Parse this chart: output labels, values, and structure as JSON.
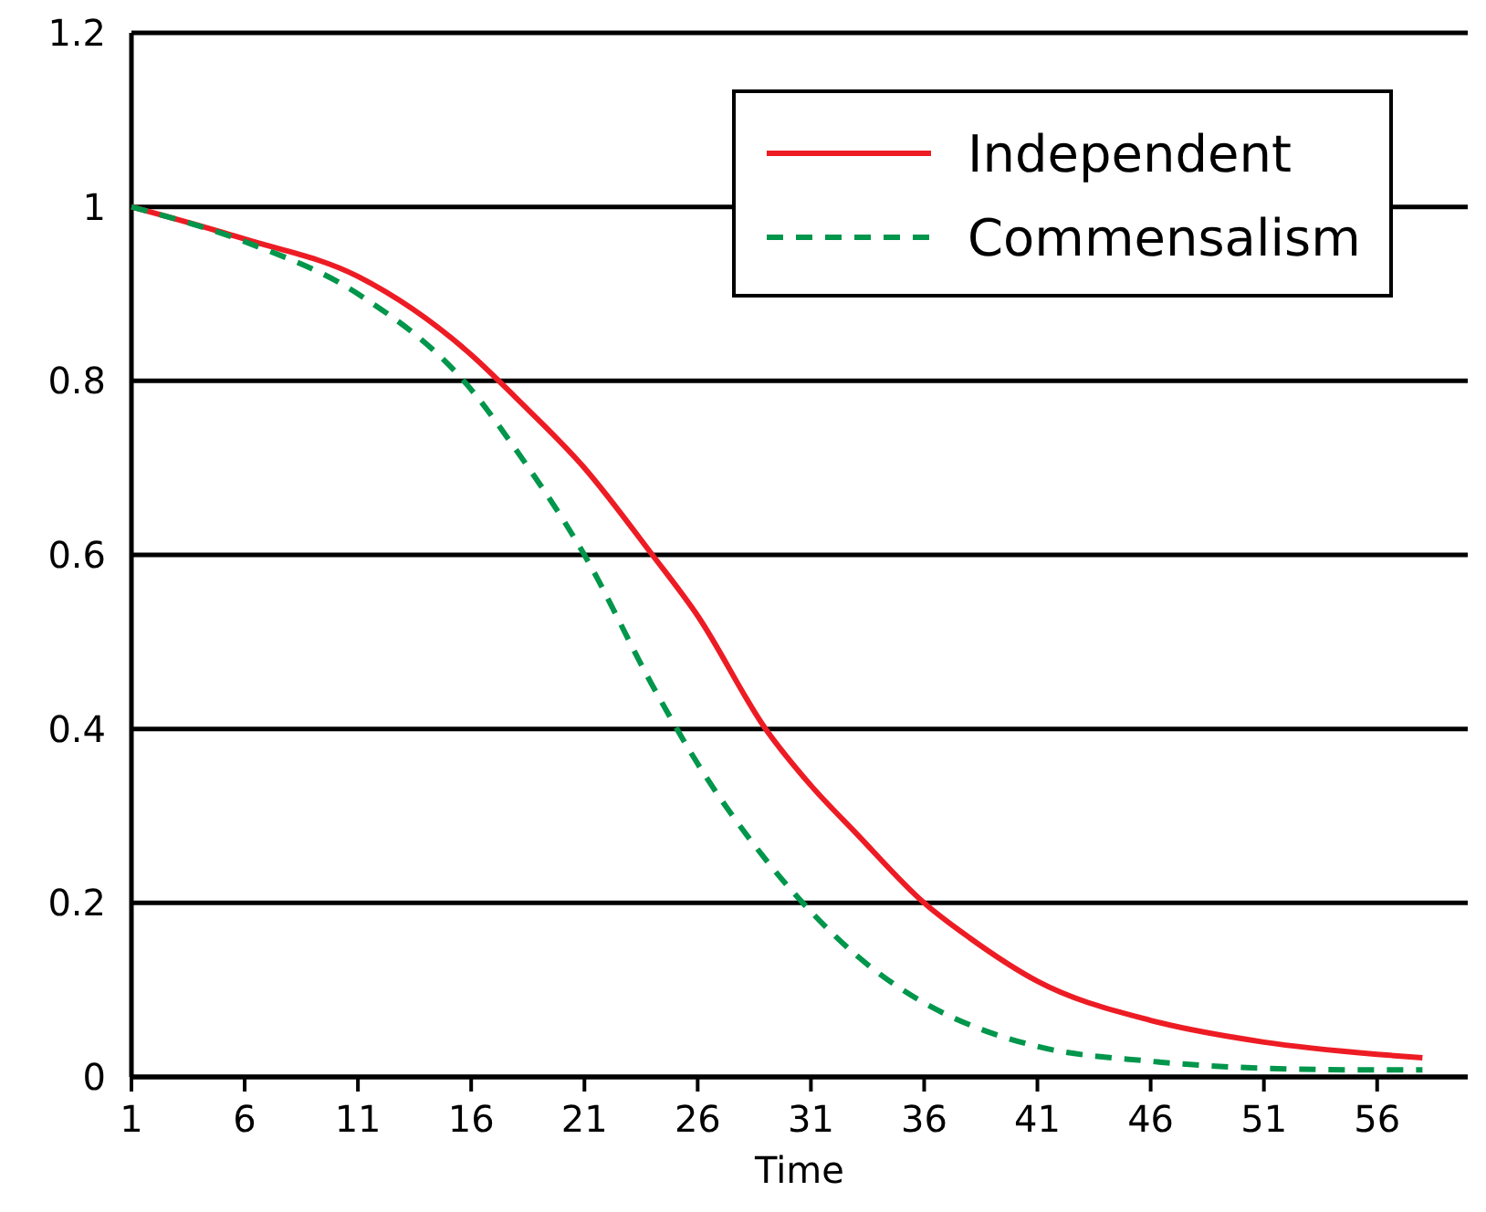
{
  "chart_data": {
    "type": "line",
    "xlabel": "Time",
    "x": [
      1,
      6,
      11,
      16,
      18,
      21,
      24,
      26,
      29,
      31,
      33,
      36,
      38,
      41,
      46,
      51,
      56,
      58
    ],
    "series": [
      {
        "name": "Independent",
        "color": "#ed1c24",
        "line_style": "solid",
        "values": [
          1,
          0.963,
          0.92,
          0.83,
          0.78,
          0.7,
          0.6,
          0.53,
          0.4,
          0.335,
          0.28,
          0.2,
          0.16,
          0.11,
          0.065,
          0.04,
          0.026,
          0.022
        ]
      },
      {
        "name": "Commensalism",
        "color": "#00964b",
        "line_style": "dashed",
        "values": [
          1,
          0.96,
          0.9,
          0.79,
          0.72,
          0.6,
          0.45,
          0.36,
          0.25,
          0.19,
          0.14,
          0.085,
          0.06,
          0.035,
          0.018,
          0.01,
          0.008,
          0.008
        ]
      }
    ],
    "xlim": [
      1,
      60
    ],
    "xticks": [
      1,
      6,
      11,
      16,
      21,
      26,
      31,
      36,
      41,
      46,
      51,
      56
    ],
    "ylim": [
      0,
      1.2
    ],
    "yticks": [
      0,
      0.2,
      0.4,
      0.6,
      0.8,
      1,
      1.2
    ],
    "grid": "y",
    "legend": "top right",
    "marker": "none"
  }
}
